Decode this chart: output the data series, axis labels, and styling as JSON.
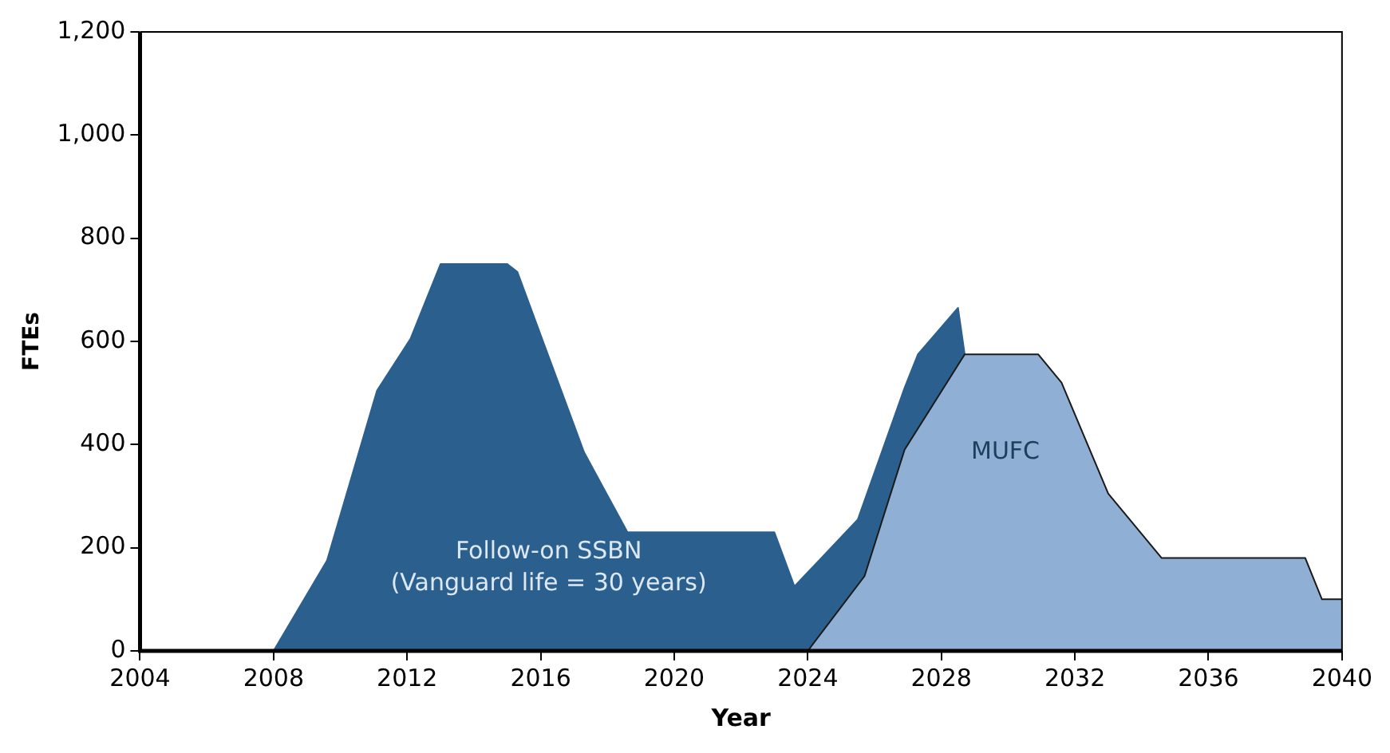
{
  "chart_data": {
    "type": "area",
    "xlabel": "Year",
    "ylabel": "FTEs",
    "xlim": [
      2004,
      2040
    ],
    "xticks": [
      2004,
      2008,
      2012,
      2016,
      2020,
      2024,
      2028,
      2032,
      2036,
      2040
    ],
    "ylim": [
      0,
      1200
    ],
    "yticks": [
      0,
      200,
      400,
      600,
      800,
      {
        "value": 1000,
        "label": "1,000"
      },
      {
        "value": 1200,
        "label": "1,200"
      }
    ],
    "grid": false,
    "legend": false,
    "series": [
      {
        "name": "Follow-on SSBN",
        "color": "#2b5f8e",
        "x": [
          2008,
          2009.6,
          2011.1,
          2012.1,
          2013,
          2015,
          2015.3,
          2016.1,
          2017.3,
          2018.6,
          2023,
          2023.6,
          2025.5,
          2026.9,
          2027.3,
          2028.5,
          2028.7
        ],
        "values": [
          0,
          175,
          505,
          605,
          750,
          750,
          735,
          595,
          385,
          230,
          230,
          125,
          255,
          510,
          575,
          665,
          575
        ]
      },
      {
        "name": "MUFC",
        "color": "#8fb0d4",
        "x": [
          2024,
          2025.7,
          2026.9,
          2028.7,
          2030.9,
          2031.6,
          2033,
          2034.6,
          2038.9,
          2039.4,
          2040
        ],
        "values": [
          0,
          145,
          390,
          575,
          575,
          520,
          305,
          180,
          180,
          100,
          100
        ]
      }
    ],
    "annotations": [
      "(Vanguard life = 30 years)"
    ]
  }
}
